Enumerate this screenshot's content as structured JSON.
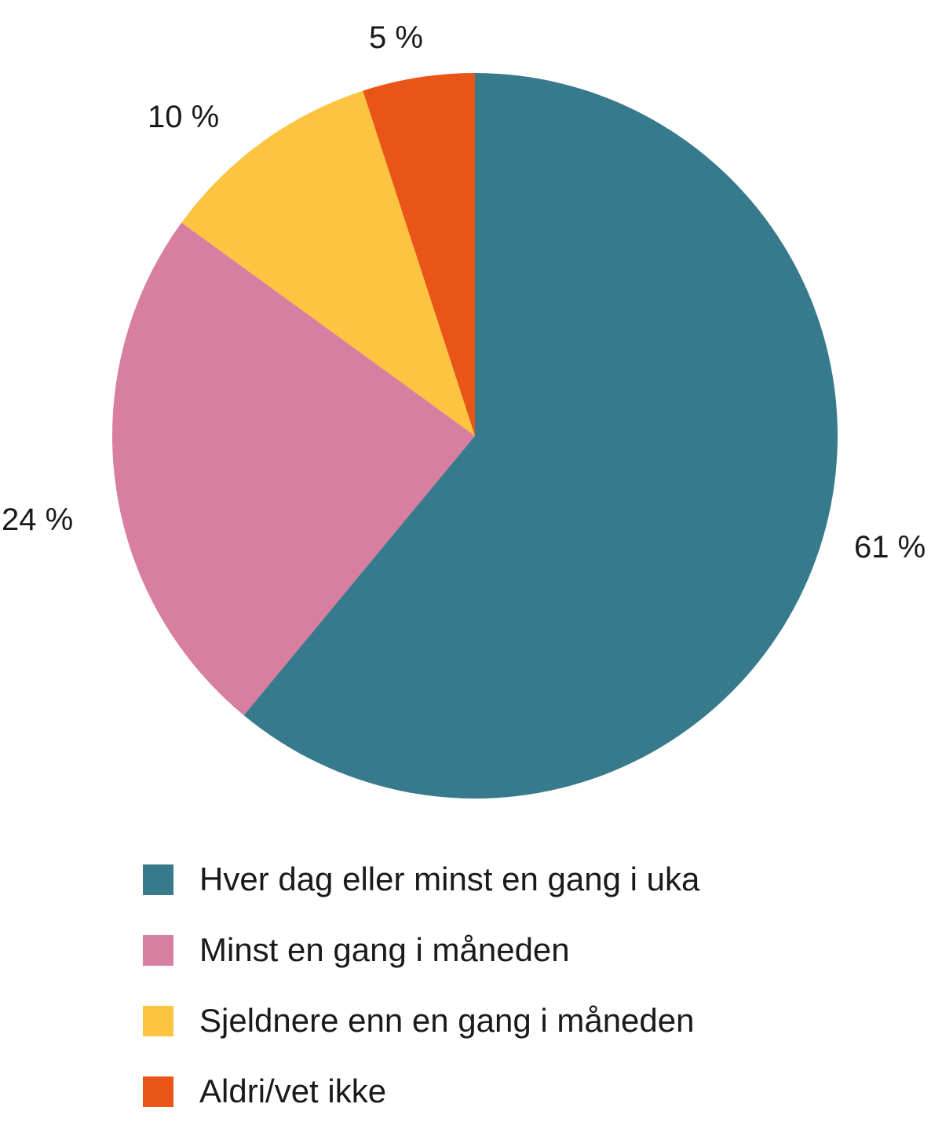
{
  "chart_data": {
    "type": "pie",
    "title": "",
    "categories": [
      "Hver dag eller minst en gang i uka",
      "Minst en gang i måneden",
      "Sjeldnere enn en gang i måneden",
      "Aldri/vet ikke"
    ],
    "values": [
      61,
      24,
      10,
      5
    ],
    "value_labels": [
      "61 %",
      "24 %",
      "10 %",
      "5 %"
    ],
    "colors": [
      "#377a8c",
      "#d87ea0",
      "#fcc440",
      "#e95516"
    ],
    "start_angle": "12 o'clock, clockwise",
    "legend_position": "bottom"
  },
  "labels": {
    "s0": "61 %",
    "s1": "24 %",
    "s2": "10 %",
    "s3": "5 %"
  },
  "legend": {
    "items": [
      {
        "label": "Hver dag eller minst en gang i uka",
        "color": "#377a8c"
      },
      {
        "label": "Minst en gang i måneden",
        "color": "#d87ea0"
      },
      {
        "label": "Sjeldnere enn en gang i måneden",
        "color": "#fcc440"
      },
      {
        "label": "Aldri/vet ikke",
        "color": "#e95516"
      }
    ]
  }
}
